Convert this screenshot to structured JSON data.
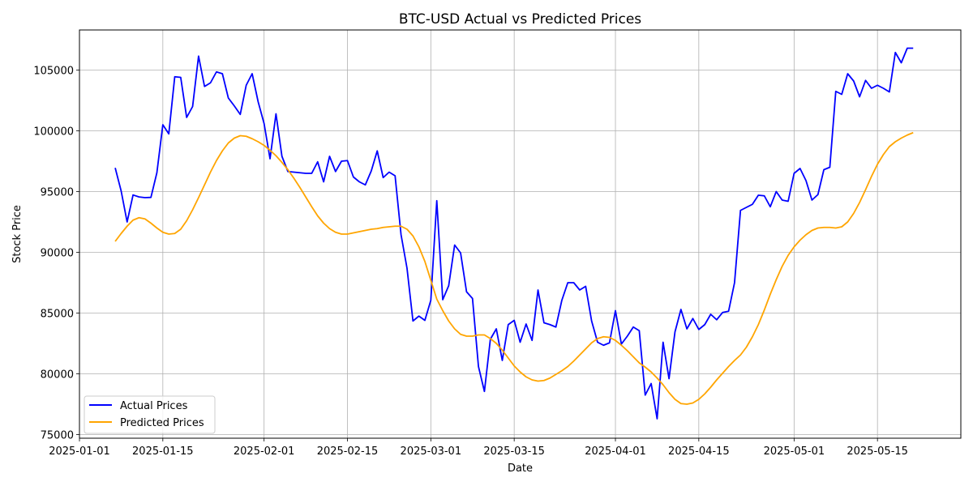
{
  "chart_data": {
    "type": "line",
    "title": "BTC-USD Actual vs Predicted Prices",
    "xlabel": "Date",
    "ylabel": "Stock Price",
    "x_ticks": [
      "2025-01-01",
      "2025-01-15",
      "2025-02-01",
      "2025-02-15",
      "2025-03-01",
      "2025-03-15",
      "2025-04-01",
      "2025-04-15",
      "2025-05-01",
      "2025-05-15"
    ],
    "y_ticks": [
      75000,
      80000,
      85000,
      90000,
      95000,
      100000,
      105000
    ],
    "xlim": [
      "2025-01-01",
      "2025-05-29"
    ],
    "ylim": [
      74700,
      108300
    ],
    "grid": true,
    "legend_position": "lower-left",
    "series": [
      {
        "name": "Actual Prices",
        "color": "#0000ff",
        "points": [
          [
            "2025-01-07",
            96950
          ],
          [
            "2025-01-08",
            95050
          ],
          [
            "2025-01-09",
            92500
          ],
          [
            "2025-01-10",
            94720
          ],
          [
            "2025-01-11",
            94560
          ],
          [
            "2025-01-12",
            94500
          ],
          [
            "2025-01-13",
            94520
          ],
          [
            "2025-01-14",
            96550
          ],
          [
            "2025-01-15",
            100500
          ],
          [
            "2025-01-16",
            99750
          ],
          [
            "2025-01-17",
            104450
          ],
          [
            "2025-01-18",
            104400
          ],
          [
            "2025-01-19",
            101100
          ],
          [
            "2025-01-20",
            102000
          ],
          [
            "2025-01-21",
            106150
          ],
          [
            "2025-01-22",
            103650
          ],
          [
            "2025-01-23",
            103950
          ],
          [
            "2025-01-24",
            104850
          ],
          [
            "2025-01-25",
            104700
          ],
          [
            "2025-01-26",
            102700
          ],
          [
            "2025-01-27",
            102050
          ],
          [
            "2025-01-28",
            101350
          ],
          [
            "2025-01-29",
            103750
          ],
          [
            "2025-01-30",
            104700
          ],
          [
            "2025-01-31",
            102400
          ],
          [
            "2025-02-01",
            100600
          ],
          [
            "2025-02-02",
            97700
          ],
          [
            "2025-02-03",
            101400
          ],
          [
            "2025-02-04",
            97900
          ],
          [
            "2025-02-05",
            96650
          ],
          [
            "2025-02-06",
            96600
          ],
          [
            "2025-02-07",
            96550
          ],
          [
            "2025-02-08",
            96500
          ],
          [
            "2025-02-09",
            96500
          ],
          [
            "2025-02-10",
            97450
          ],
          [
            "2025-02-11",
            95800
          ],
          [
            "2025-02-12",
            97900
          ],
          [
            "2025-02-13",
            96650
          ],
          [
            "2025-02-14",
            97500
          ],
          [
            "2025-02-15",
            97550
          ],
          [
            "2025-02-16",
            96200
          ],
          [
            "2025-02-17",
            95800
          ],
          [
            "2025-02-18",
            95550
          ],
          [
            "2025-02-19",
            96700
          ],
          [
            "2025-02-20",
            98350
          ],
          [
            "2025-02-21",
            96150
          ],
          [
            "2025-02-22",
            96600
          ],
          [
            "2025-02-23",
            96300
          ],
          [
            "2025-02-24",
            91450
          ],
          [
            "2025-02-25",
            88700
          ],
          [
            "2025-02-26",
            84350
          ],
          [
            "2025-02-27",
            84750
          ],
          [
            "2025-02-28",
            84400
          ],
          [
            "2025-03-01",
            86050
          ],
          [
            "2025-03-02",
            94250
          ],
          [
            "2025-03-03",
            86100
          ],
          [
            "2025-03-04",
            87250
          ],
          [
            "2025-03-05",
            90600
          ],
          [
            "2025-03-06",
            89950
          ],
          [
            "2025-03-07",
            86750
          ],
          [
            "2025-03-08",
            86200
          ],
          [
            "2025-03-09",
            80600
          ],
          [
            "2025-03-10",
            78550
          ],
          [
            "2025-03-11",
            82850
          ],
          [
            "2025-03-12",
            83700
          ],
          [
            "2025-03-13",
            81100
          ],
          [
            "2025-03-14",
            84050
          ],
          [
            "2025-03-15",
            84400
          ],
          [
            "2025-03-16",
            82600
          ],
          [
            "2025-03-17",
            84100
          ],
          [
            "2025-03-18",
            82750
          ],
          [
            "2025-03-19",
            86900
          ],
          [
            "2025-03-20",
            84200
          ],
          [
            "2025-03-21",
            84050
          ],
          [
            "2025-03-22",
            83850
          ],
          [
            "2025-03-23",
            86050
          ],
          [
            "2025-03-24",
            87500
          ],
          [
            "2025-03-25",
            87500
          ],
          [
            "2025-03-26",
            86900
          ],
          [
            "2025-03-27",
            87200
          ],
          [
            "2025-03-28",
            84350
          ],
          [
            "2025-03-29",
            82600
          ],
          [
            "2025-03-30",
            82350
          ],
          [
            "2025-03-31",
            82550
          ],
          [
            "2025-04-01",
            85200
          ],
          [
            "2025-04-02",
            82450
          ],
          [
            "2025-04-03",
            83100
          ],
          [
            "2025-04-04",
            83850
          ],
          [
            "2025-04-05",
            83550
          ],
          [
            "2025-04-06",
            78250
          ],
          [
            "2025-04-07",
            79200
          ],
          [
            "2025-04-08",
            76300
          ],
          [
            "2025-04-09",
            82600
          ],
          [
            "2025-04-10",
            79600
          ],
          [
            "2025-04-11",
            83450
          ],
          [
            "2025-04-12",
            85300
          ],
          [
            "2025-04-13",
            83700
          ],
          [
            "2025-04-14",
            84550
          ],
          [
            "2025-04-15",
            83650
          ],
          [
            "2025-04-16",
            84050
          ],
          [
            "2025-04-17",
            84900
          ],
          [
            "2025-04-18",
            84450
          ],
          [
            "2025-04-19",
            85050
          ],
          [
            "2025-04-20",
            85150
          ],
          [
            "2025-04-21",
            87500
          ],
          [
            "2025-04-22",
            93450
          ],
          [
            "2025-04-23",
            93700
          ],
          [
            "2025-04-24",
            93950
          ],
          [
            "2025-04-25",
            94700
          ],
          [
            "2025-04-26",
            94650
          ],
          [
            "2025-04-27",
            93750
          ],
          [
            "2025-04-28",
            95000
          ],
          [
            "2025-04-29",
            94300
          ],
          [
            "2025-04-30",
            94200
          ],
          [
            "2025-05-01",
            96500
          ],
          [
            "2025-05-02",
            96900
          ],
          [
            "2025-05-03",
            95900
          ],
          [
            "2025-05-04",
            94300
          ],
          [
            "2025-05-05",
            94750
          ],
          [
            "2025-05-06",
            96800
          ],
          [
            "2025-05-07",
            97000
          ],
          [
            "2025-05-08",
            103250
          ],
          [
            "2025-05-09",
            103000
          ],
          [
            "2025-05-10",
            104700
          ],
          [
            "2025-05-11",
            104100
          ],
          [
            "2025-05-12",
            102800
          ],
          [
            "2025-05-13",
            104150
          ],
          [
            "2025-05-14",
            103500
          ],
          [
            "2025-05-15",
            103750
          ],
          [
            "2025-05-16",
            103500
          ],
          [
            "2025-05-17",
            103200
          ],
          [
            "2025-05-18",
            106450
          ],
          [
            "2025-05-19",
            105600
          ],
          [
            "2025-05-20",
            106800
          ],
          [
            "2025-05-21",
            106800
          ]
        ]
      },
      {
        "name": "Predicted Prices",
        "color": "#ffa500",
        "points": [
          [
            "2025-01-07",
            90900
          ],
          [
            "2025-01-08",
            91550
          ],
          [
            "2025-01-09",
            92150
          ],
          [
            "2025-01-10",
            92650
          ],
          [
            "2025-01-11",
            92850
          ],
          [
            "2025-01-12",
            92750
          ],
          [
            "2025-01-13",
            92400
          ],
          [
            "2025-01-14",
            92000
          ],
          [
            "2025-01-15",
            91650
          ],
          [
            "2025-01-16",
            91500
          ],
          [
            "2025-01-17",
            91550
          ],
          [
            "2025-01-18",
            91900
          ],
          [
            "2025-01-19",
            92600
          ],
          [
            "2025-01-20",
            93500
          ],
          [
            "2025-01-21",
            94500
          ],
          [
            "2025-01-22",
            95550
          ],
          [
            "2025-01-23",
            96600
          ],
          [
            "2025-01-24",
            97550
          ],
          [
            "2025-01-25",
            98350
          ],
          [
            "2025-01-26",
            99000
          ],
          [
            "2025-01-27",
            99400
          ],
          [
            "2025-01-28",
            99600
          ],
          [
            "2025-01-29",
            99550
          ],
          [
            "2025-01-30",
            99350
          ],
          [
            "2025-01-31",
            99100
          ],
          [
            "2025-02-01",
            98800
          ],
          [
            "2025-02-02",
            98400
          ],
          [
            "2025-02-03",
            97950
          ],
          [
            "2025-02-04",
            97400
          ],
          [
            "2025-02-05",
            96800
          ],
          [
            "2025-02-06",
            96100
          ],
          [
            "2025-02-07",
            95350
          ],
          [
            "2025-02-08",
            94550
          ],
          [
            "2025-02-09",
            93750
          ],
          [
            "2025-02-10",
            93000
          ],
          [
            "2025-02-11",
            92400
          ],
          [
            "2025-02-12",
            91950
          ],
          [
            "2025-02-13",
            91650
          ],
          [
            "2025-02-14",
            91500
          ],
          [
            "2025-02-15",
            91500
          ],
          [
            "2025-02-16",
            91600
          ],
          [
            "2025-02-17",
            91700
          ],
          [
            "2025-02-18",
            91800
          ],
          [
            "2025-02-19",
            91900
          ],
          [
            "2025-02-20",
            91950
          ],
          [
            "2025-02-21",
            92050
          ],
          [
            "2025-02-22",
            92100
          ],
          [
            "2025-02-23",
            92150
          ],
          [
            "2025-02-24",
            92150
          ],
          [
            "2025-02-25",
            91900
          ],
          [
            "2025-02-26",
            91350
          ],
          [
            "2025-02-27",
            90450
          ],
          [
            "2025-02-28",
            89250
          ],
          [
            "2025-03-01",
            87700
          ],
          [
            "2025-03-02",
            86150
          ],
          [
            "2025-03-03",
            85200
          ],
          [
            "2025-03-04",
            84350
          ],
          [
            "2025-03-05",
            83700
          ],
          [
            "2025-03-06",
            83250
          ],
          [
            "2025-03-07",
            83100
          ],
          [
            "2025-03-08",
            83100
          ],
          [
            "2025-03-09",
            83200
          ],
          [
            "2025-03-10",
            83200
          ],
          [
            "2025-03-11",
            82900
          ],
          [
            "2025-03-12",
            82500
          ],
          [
            "2025-03-13",
            81950
          ],
          [
            "2025-03-14",
            81300
          ],
          [
            "2025-03-15",
            80650
          ],
          [
            "2025-03-16",
            80150
          ],
          [
            "2025-03-17",
            79750
          ],
          [
            "2025-03-18",
            79500
          ],
          [
            "2025-03-19",
            79400
          ],
          [
            "2025-03-20",
            79450
          ],
          [
            "2025-03-21",
            79650
          ],
          [
            "2025-03-22",
            79950
          ],
          [
            "2025-03-23",
            80250
          ],
          [
            "2025-03-24",
            80600
          ],
          [
            "2025-03-25",
            81050
          ],
          [
            "2025-03-26",
            81550
          ],
          [
            "2025-03-27",
            82050
          ],
          [
            "2025-03-28",
            82550
          ],
          [
            "2025-03-29",
            82900
          ],
          [
            "2025-03-30",
            83050
          ],
          [
            "2025-03-31",
            83000
          ],
          [
            "2025-04-01",
            82750
          ],
          [
            "2025-04-02",
            82350
          ],
          [
            "2025-04-03",
            81900
          ],
          [
            "2025-04-04",
            81400
          ],
          [
            "2025-04-05",
            80900
          ],
          [
            "2025-04-06",
            80550
          ],
          [
            "2025-04-07",
            80150
          ],
          [
            "2025-04-08",
            79650
          ],
          [
            "2025-04-09",
            79100
          ],
          [
            "2025-04-10",
            78450
          ],
          [
            "2025-04-11",
            77900
          ],
          [
            "2025-04-12",
            77550
          ],
          [
            "2025-04-13",
            77500
          ],
          [
            "2025-04-14",
            77600
          ],
          [
            "2025-04-15",
            77900
          ],
          [
            "2025-04-16",
            78350
          ],
          [
            "2025-04-17",
            78900
          ],
          [
            "2025-04-18",
            79500
          ],
          [
            "2025-04-19",
            80050
          ],
          [
            "2025-04-20",
            80600
          ],
          [
            "2025-04-21",
            81100
          ],
          [
            "2025-04-22",
            81550
          ],
          [
            "2025-04-23",
            82200
          ],
          [
            "2025-04-24",
            83050
          ],
          [
            "2025-04-25",
            84050
          ],
          [
            "2025-04-26",
            85250
          ],
          [
            "2025-04-27",
            86550
          ],
          [
            "2025-04-28",
            87750
          ],
          [
            "2025-04-29",
            88850
          ],
          [
            "2025-04-30",
            89750
          ],
          [
            "2025-05-01",
            90450
          ],
          [
            "2025-05-02",
            91000
          ],
          [
            "2025-05-03",
            91450
          ],
          [
            "2025-05-04",
            91800
          ],
          [
            "2025-05-05",
            92000
          ],
          [
            "2025-05-06",
            92050
          ],
          [
            "2025-05-07",
            92050
          ],
          [
            "2025-05-08",
            92000
          ],
          [
            "2025-05-09",
            92100
          ],
          [
            "2025-05-10",
            92500
          ],
          [
            "2025-05-11",
            93200
          ],
          [
            "2025-05-12",
            94100
          ],
          [
            "2025-05-13",
            95150
          ],
          [
            "2025-05-14",
            96250
          ],
          [
            "2025-05-15",
            97250
          ],
          [
            "2025-05-16",
            98050
          ],
          [
            "2025-05-17",
            98700
          ],
          [
            "2025-05-18",
            99100
          ],
          [
            "2025-05-19",
            99400
          ],
          [
            "2025-05-20",
            99650
          ],
          [
            "2025-05-21",
            99850
          ]
        ]
      }
    ]
  }
}
